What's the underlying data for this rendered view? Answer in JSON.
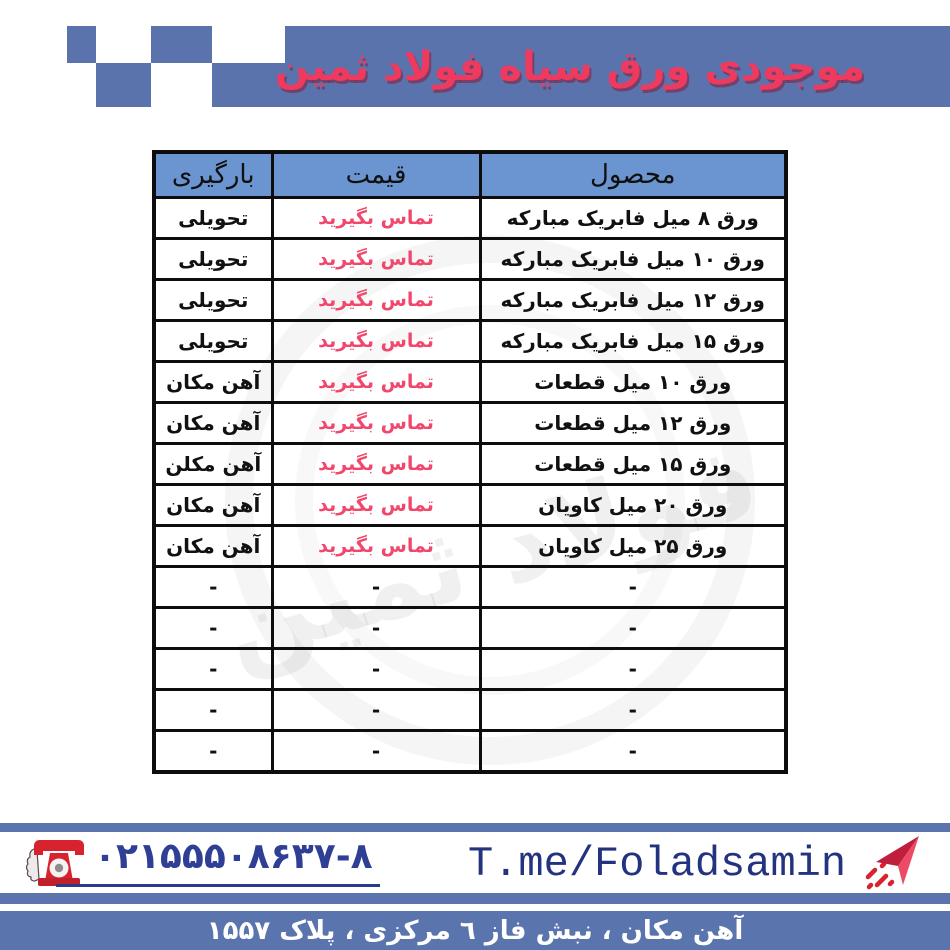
{
  "banner": {
    "title": "موجودی ورق سیاه فولاد ثمین"
  },
  "watermark": {
    "text": "فولاد ثمین"
  },
  "table": {
    "headers": {
      "product": "محصول",
      "price": "قیمت",
      "loading": "بارگیری"
    },
    "rows": [
      {
        "product": "ورق ۸ میل فابریک مبارکه",
        "price": "تماس بگیرید",
        "loading": "تحویلی",
        "price_red": true
      },
      {
        "product": "ورق ۱۰ میل فابریک مبارکه",
        "price": "تماس بگیرید",
        "loading": "تحویلی",
        "price_red": true
      },
      {
        "product": "ورق ۱۲ میل فابریک مبارکه",
        "price": "تماس بگیرید",
        "loading": "تحویلی",
        "price_red": true
      },
      {
        "product": "ورق ۱۵ میل فابریک مبارکه",
        "price": "تماس بگیرید",
        "loading": "تحویلی",
        "price_red": true
      },
      {
        "product": "ورق ۱۰ میل قطعات",
        "price": "تماس بگیرید",
        "loading": "آهن مکان",
        "price_red": true
      },
      {
        "product": "ورق ۱۲ میل قطعات",
        "price": "تماس بگیرید",
        "loading": "آهن مکان",
        "price_red": true
      },
      {
        "product": "ورق ۱۵ میل قطعات",
        "price": "تماس بگیرید",
        "loading": "آهن مکلن",
        "price_red": true
      },
      {
        "product": "ورق ۲۰ میل کاویان",
        "price": "تماس بگیرید",
        "loading": "آهن مکان",
        "price_red": true
      },
      {
        "product": "ورق ۲۵ میل کاویان",
        "price": "تماس بگیرید",
        "loading": "آهن مکان",
        "price_red": true
      },
      {
        "product": "-",
        "price": "-",
        "loading": "-",
        "price_red": false
      },
      {
        "product": "-",
        "price": "-",
        "loading": "-",
        "price_red": false
      },
      {
        "product": "-",
        "price": "-",
        "loading": "-",
        "price_red": false
      },
      {
        "product": "-",
        "price": "-",
        "loading": "-",
        "price_red": false
      },
      {
        "product": "-",
        "price": "-",
        "loading": "-",
        "price_red": false
      }
    ]
  },
  "footer": {
    "phone": "۰۲۱۵۵۵۰۸۶۳۷-۸",
    "telegram": "T.me/Foladsamin",
    "address": "آهن مکان ، نبش فاز ٦ مرکزی ، پلاک ۱۵۵۷",
    "icons": {
      "phone": "phone-icon",
      "plane": "paper-plane-icon"
    }
  },
  "colors": {
    "banner_blue": "#5a73ad",
    "table_header_blue": "#6b95d1",
    "title_red": "#ee3a5f",
    "price_red": "#f2476c",
    "contact_navy": "#2f3f95",
    "phone_icon_red": "#d8232f",
    "address_bar_blue": "#5a74ad",
    "border_black": "#0d0d0d"
  }
}
